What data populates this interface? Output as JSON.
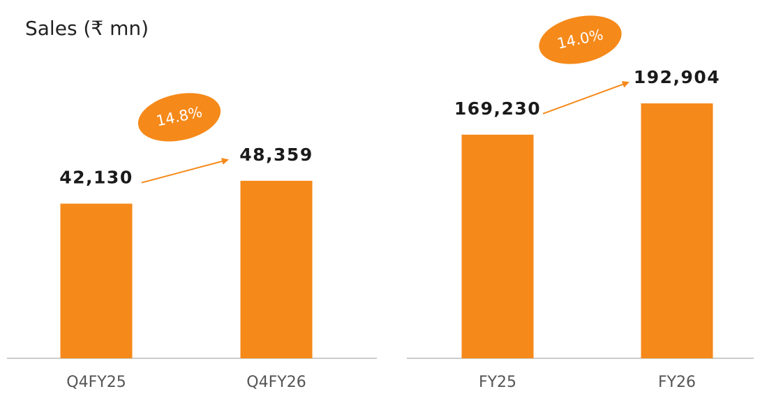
{
  "chart_data": [
    {
      "type": "bar",
      "title": "Sales (₹ mn)",
      "categories": [
        "Q4FY25",
        "Q4FY26"
      ],
      "values": [
        42130,
        48359
      ],
      "value_labels": [
        "42,130",
        "48,359"
      ],
      "color": "#f5891a",
      "ylim": [
        0,
        90000
      ],
      "annotation": "14.8%"
    },
    {
      "type": "bar",
      "categories": [
        "FY25",
        "FY26"
      ],
      "values": [
        169230,
        192904
      ],
      "value_labels": [
        "169,230",
        "192,904"
      ],
      "color": "#f5891a",
      "ylim": [
        0,
        250000
      ],
      "annotation": "14.0%"
    }
  ]
}
